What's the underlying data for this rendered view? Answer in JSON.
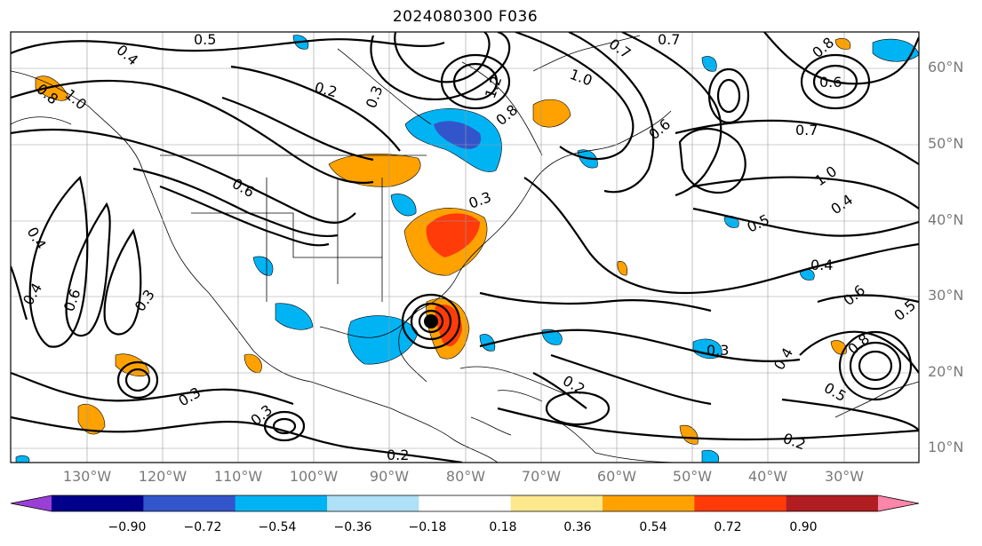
{
  "title": "2024080300 F036",
  "lat_labels": [
    "60°N",
    "50°N",
    "40°N",
    "30°N",
    "20°N",
    "10°N"
  ],
  "lon_labels": [
    "130°W",
    "120°W",
    "110°W",
    "100°W",
    "90°W",
    "80°W",
    "70°W",
    "60°W",
    "50°W",
    "40°W",
    "30°W"
  ],
  "contour_labels": [
    "0.5",
    "0.4",
    "0.7",
    "0.2",
    "0.3",
    "0.6",
    "0.8",
    "1.0",
    "1.2",
    "0.7",
    "0.6",
    "0.7",
    "0.8",
    "1.0",
    "0.4",
    "0.5",
    "0.4",
    "0.6",
    "0.5",
    "0.6",
    "0.3",
    "0.3",
    "0.3",
    "0.2",
    "0.2",
    "0.4",
    "0.3",
    "0.8",
    "0.4",
    "0.8",
    "1.0",
    "0.5",
    "0.6",
    "0.4",
    "0.3",
    "0.2"
  ],
  "colorbar": {
    "ticks": [
      "−0.90",
      "−0.72",
      "−0.54",
      "−0.36",
      "−0.18",
      "0.18",
      "0.36",
      "0.54",
      "0.72",
      "0.90"
    ],
    "colors": [
      "#9a3fd6",
      "#00008b",
      "#3355cc",
      "#00b4f4",
      "#aee0f8",
      "#ffffff",
      "#fde88e",
      "#ffa200",
      "#ff3b0a",
      "#b01e22",
      "#ff86ab"
    ]
  }
}
